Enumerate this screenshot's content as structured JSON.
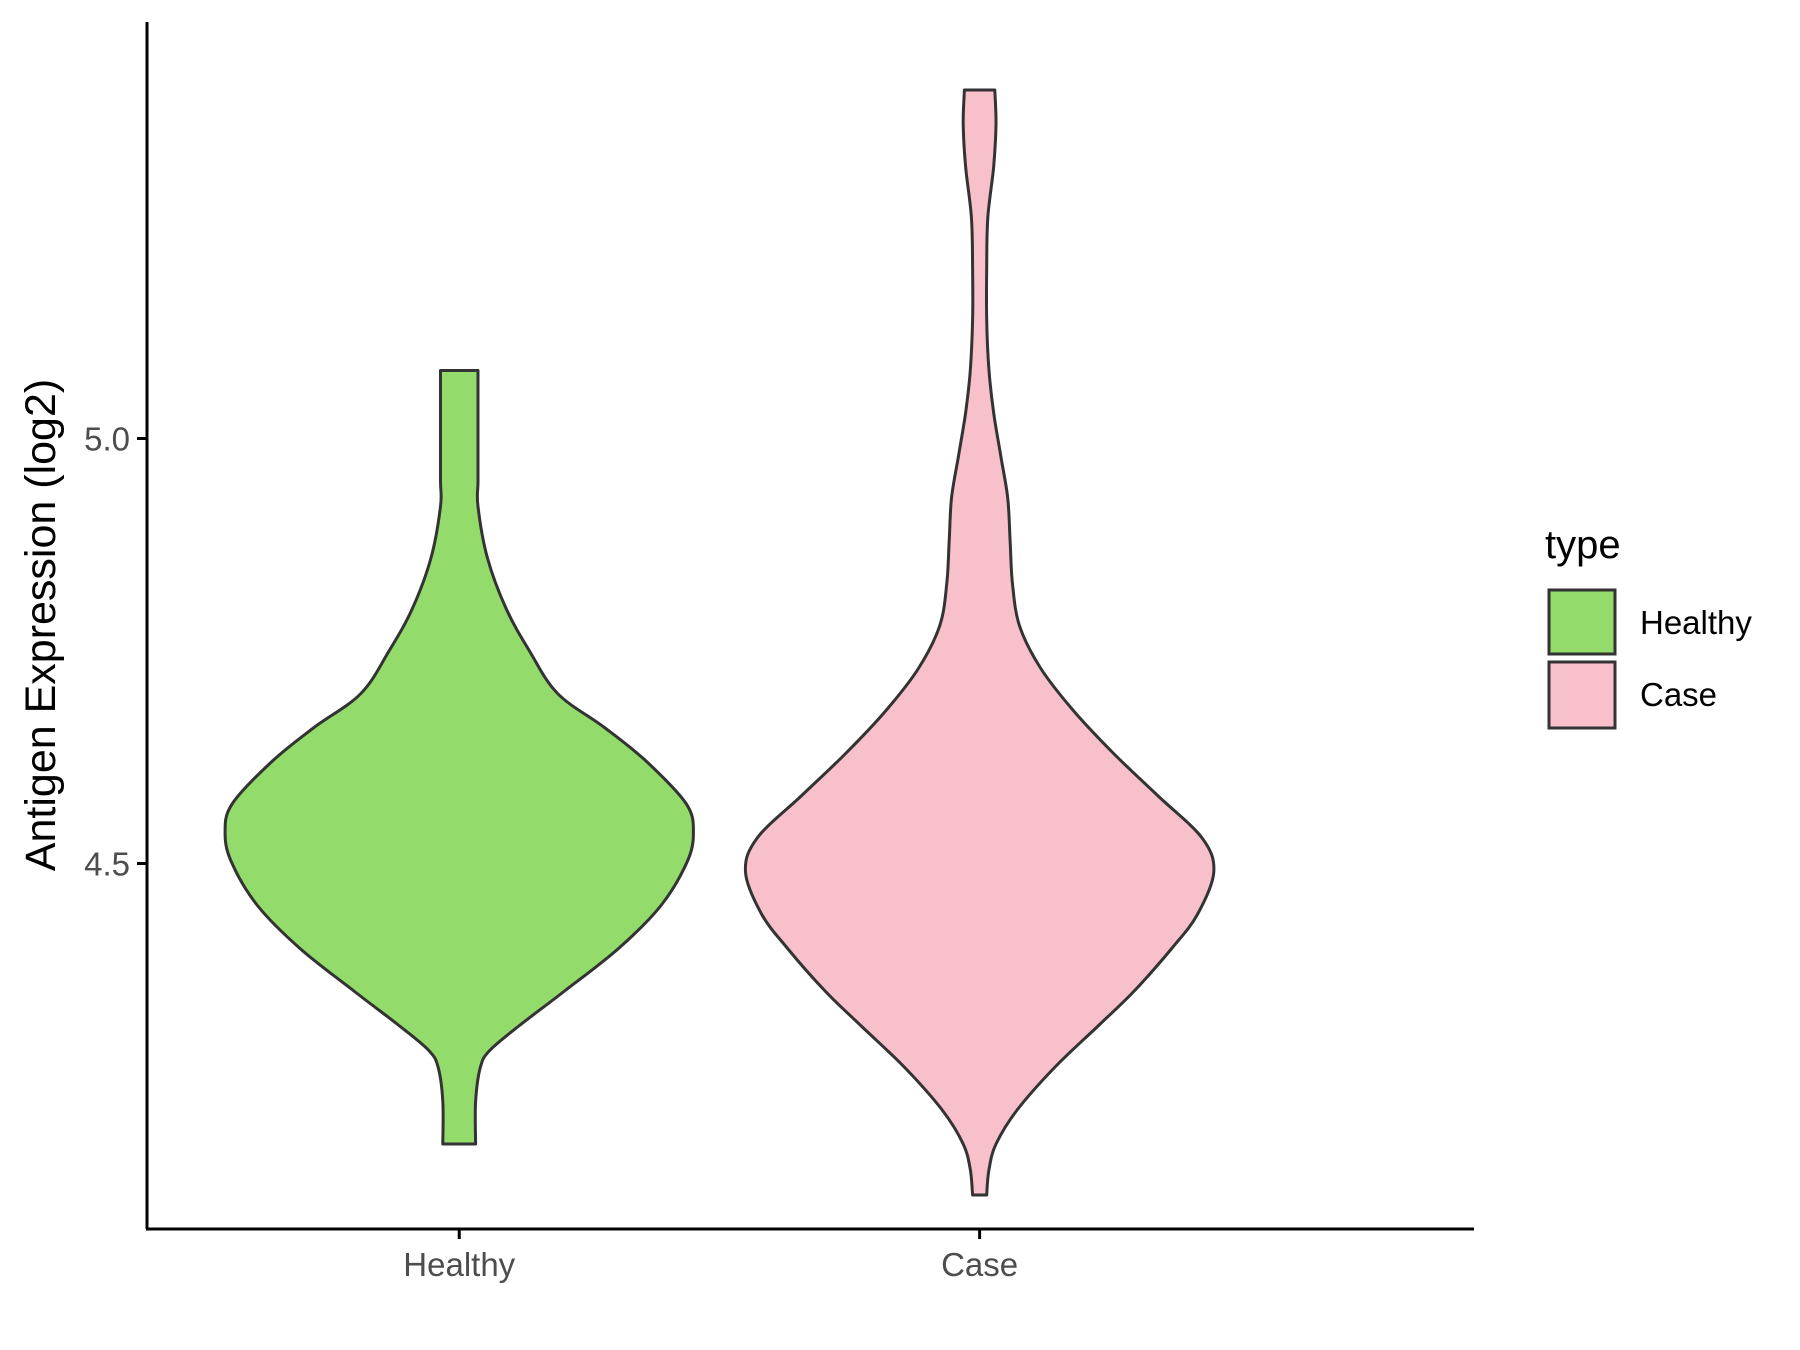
{
  "chart_data": {
    "type": "violin",
    "title": "",
    "xlabel": "",
    "ylabel": "Antigen Expression (log2)",
    "categories": [
      "Healthy",
      "Case"
    ],
    "yticks": [
      "4.5",
      "5.0"
    ],
    "ylim": [
      4.07,
      5.49
    ],
    "grid": false,
    "legend": {
      "title": "type",
      "position": "right",
      "entries": [
        "Healthy",
        "Case"
      ]
    },
    "colors": {
      "Healthy": "#93dc6b",
      "Case": "#f8c0cb",
      "outline": "#333333"
    },
    "series": [
      {
        "name": "Healthy",
        "range": [
          4.17,
          5.08
        ],
        "profile": [
          [
            4.17,
            0.07
          ],
          [
            4.22,
            0.07
          ],
          [
            4.26,
            0.09
          ],
          [
            4.28,
            0.13
          ],
          [
            4.31,
            0.26
          ],
          [
            4.35,
            0.45
          ],
          [
            4.4,
            0.68
          ],
          [
            4.45,
            0.86
          ],
          [
            4.5,
            0.97
          ],
          [
            4.535,
            1.0
          ],
          [
            4.57,
            0.97
          ],
          [
            4.62,
            0.8
          ],
          [
            4.66,
            0.62
          ],
          [
            4.7,
            0.42
          ],
          [
            4.75,
            0.3
          ],
          [
            4.8,
            0.2
          ],
          [
            4.86,
            0.12
          ],
          [
            4.92,
            0.08
          ],
          [
            4.95,
            0.08
          ],
          [
            5.0,
            0.08
          ],
          [
            5.04,
            0.08
          ],
          [
            5.08,
            0.08
          ]
        ]
      },
      {
        "name": "Case",
        "range": [
          4.11,
          5.41
        ],
        "profile": [
          [
            4.11,
            0.03
          ],
          [
            4.14,
            0.04
          ],
          [
            4.17,
            0.07
          ],
          [
            4.21,
            0.16
          ],
          [
            4.26,
            0.32
          ],
          [
            4.31,
            0.51
          ],
          [
            4.35,
            0.66
          ],
          [
            4.4,
            0.82
          ],
          [
            4.44,
            0.93
          ],
          [
            4.49,
            1.0
          ],
          [
            4.53,
            0.95
          ],
          [
            4.58,
            0.76
          ],
          [
            4.63,
            0.57
          ],
          [
            4.68,
            0.4
          ],
          [
            4.73,
            0.26
          ],
          [
            4.78,
            0.17
          ],
          [
            4.83,
            0.14
          ],
          [
            4.88,
            0.13
          ],
          [
            4.93,
            0.12
          ],
          [
            4.98,
            0.09
          ],
          [
            5.03,
            0.06
          ],
          [
            5.08,
            0.04
          ],
          [
            5.14,
            0.03
          ],
          [
            5.2,
            0.03
          ],
          [
            5.26,
            0.035
          ],
          [
            5.32,
            0.06
          ],
          [
            5.37,
            0.07
          ],
          [
            5.41,
            0.065
          ]
        ]
      }
    ]
  }
}
